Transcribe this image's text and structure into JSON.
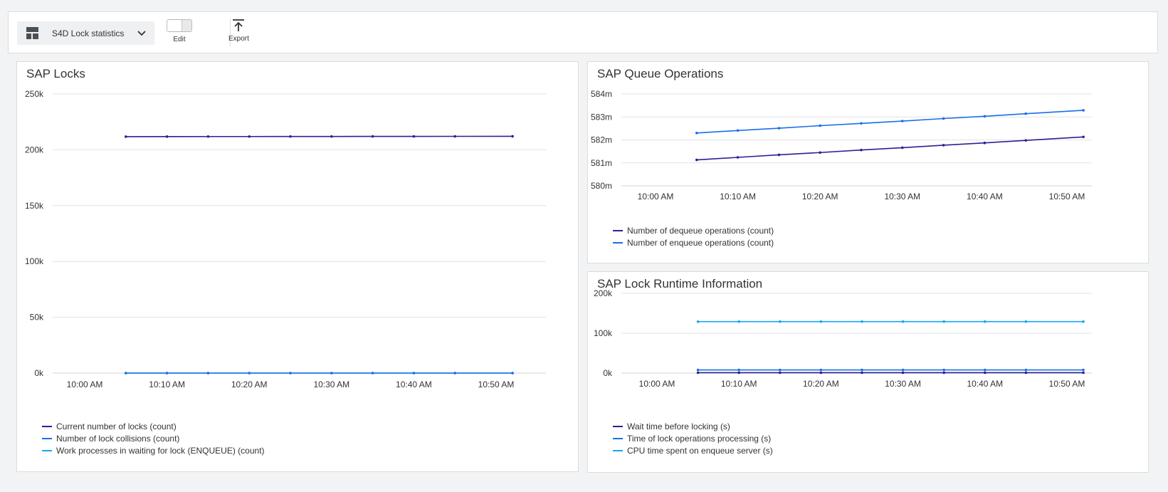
{
  "toolbar": {
    "dashboard_name": "S4D Lock statistics",
    "edit_label": "Edit",
    "export_label": "Export"
  },
  "colors": {
    "dark_blue": "#2a2193",
    "blue": "#1a6ee8",
    "light_blue": "#14a6f0"
  },
  "icons": [
    "dashboard-icon",
    "chevron-down-icon",
    "export-icon"
  ],
  "chart_data": [
    {
      "id": "locks",
      "type": "line",
      "title": "SAP Locks",
      "x_ticks": [
        "10:00 AM",
        "10:10 AM",
        "10:20 AM",
        "10:30 AM",
        "10:40 AM",
        "10:50 AM"
      ],
      "x": [
        "10:05 AM",
        "10:10 AM",
        "10:15 AM",
        "10:20 AM",
        "10:25 AM",
        "10:30 AM",
        "10:35 AM",
        "10:40 AM",
        "10:45 AM",
        "10:52 AM"
      ],
      "y_ticks": [
        "0k",
        "50k",
        "100k",
        "150k",
        "200k",
        "250k"
      ],
      "ylim": [
        0,
        250000
      ],
      "grid": true,
      "legend_position": "bottom-left",
      "series": [
        {
          "name": "Current number of locks (count)",
          "color": "#2a2193",
          "values": [
            211800,
            211850,
            211900,
            211900,
            211950,
            211950,
            212000,
            212000,
            212050,
            212100
          ]
        },
        {
          "name": "Number of lock collisions (count)",
          "color": "#1a6ee8",
          "values": [
            0,
            0,
            0,
            0,
            0,
            0,
            0,
            0,
            0,
            0
          ]
        },
        {
          "name": "Work processes in waiting for lock (ENQUEUE) (count)",
          "color": "#14a6f0",
          "values": [
            0,
            0,
            0,
            0,
            0,
            0,
            0,
            0,
            0,
            0
          ]
        }
      ]
    },
    {
      "id": "queue",
      "type": "line",
      "title": "SAP Queue Operations",
      "x_ticks": [
        "10:00 AM",
        "10:10 AM",
        "10:20 AM",
        "10:30 AM",
        "10:40 AM",
        "10:50 AM"
      ],
      "x": [
        "10:05 AM",
        "10:10 AM",
        "10:15 AM",
        "10:20 AM",
        "10:25 AM",
        "10:30 AM",
        "10:35 AM",
        "10:40 AM",
        "10:45 AM",
        "10:52 AM"
      ],
      "y_ticks": [
        "580m",
        "581m",
        "582m",
        "583m",
        "584m"
      ],
      "ylim": [
        580,
        584
      ],
      "grid": true,
      "legend_position": "bottom-left",
      "series": [
        {
          "name": "Number of dequeue operations (count)",
          "color": "#2a2193",
          "values": [
            581.13,
            581.24,
            581.35,
            581.45,
            581.56,
            581.66,
            581.77,
            581.87,
            581.98,
            582.13
          ]
        },
        {
          "name": "Number of enqueue operations (count)",
          "color": "#1a6ee8",
          "values": [
            582.3,
            582.41,
            582.51,
            582.62,
            582.72,
            582.82,
            582.93,
            583.03,
            583.14,
            583.29
          ]
        }
      ]
    },
    {
      "id": "runtime",
      "type": "line",
      "title": "SAP Lock Runtime Information",
      "x_ticks": [
        "10:00 AM",
        "10:10 AM",
        "10:20 AM",
        "10:30 AM",
        "10:40 AM",
        "10:50 AM"
      ],
      "x": [
        "10:05 AM",
        "10:10 AM",
        "10:15 AM",
        "10:20 AM",
        "10:25 AM",
        "10:30 AM",
        "10:35 AM",
        "10:40 AM",
        "10:45 AM",
        "10:52 AM"
      ],
      "y_ticks": [
        "0k",
        "100k",
        "200k"
      ],
      "ylim": [
        0,
        200000
      ],
      "grid": true,
      "legend_position": "bottom-left",
      "series": [
        {
          "name": "Wait time before locking (s)",
          "color": "#2a2193",
          "values": [
            1000,
            1000,
            1000,
            1000,
            1000,
            1000,
            1000,
            1000,
            1000,
            1000
          ]
        },
        {
          "name": "Time of lock operations processing (s)",
          "color": "#1a6ee8",
          "values": [
            8000,
            8000,
            8000,
            8000,
            8000,
            8000,
            8000,
            8000,
            8000,
            8000
          ]
        },
        {
          "name": "CPU time spent on enqueue server (s)",
          "color": "#14a6f0",
          "values": [
            129000,
            129200,
            129200,
            129200,
            129200,
            129200,
            129200,
            129200,
            129200,
            129200
          ]
        }
      ]
    }
  ]
}
